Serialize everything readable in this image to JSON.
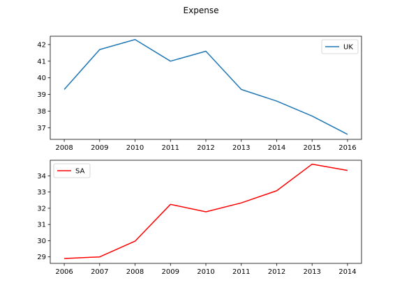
{
  "figure_title": "Expense",
  "chart_data": [
    {
      "type": "line",
      "x": [
        "2008",
        "2009",
        "2010",
        "2011",
        "2012",
        "2013",
        "2014",
        "2015",
        "2016"
      ],
      "series": [
        {
          "name": "UK",
          "values": [
            39.3,
            41.7,
            42.3,
            41.0,
            41.6,
            39.3,
            38.6,
            37.7,
            36.6
          ],
          "color": "#1f77b4"
        }
      ],
      "ylim": [
        36.3,
        42.5
      ],
      "yticks": [
        37,
        38,
        39,
        40,
        41,
        42
      ],
      "legend": "upper right",
      "grid": false
    },
    {
      "type": "line",
      "x": [
        "2006",
        "2007",
        "2008",
        "2009",
        "2010",
        "2011",
        "2012",
        "2013",
        "2014"
      ],
      "series": [
        {
          "name": "SA",
          "values": [
            28.9,
            29.0,
            29.97,
            32.24,
            31.78,
            32.33,
            33.08,
            34.72,
            34.33
          ],
          "color": "#ff0000"
        }
      ],
      "ylim": [
        28.6,
        34.96
      ],
      "yticks": [
        29,
        30,
        31,
        32,
        33,
        34
      ],
      "legend": "upper left",
      "grid": false
    }
  ]
}
